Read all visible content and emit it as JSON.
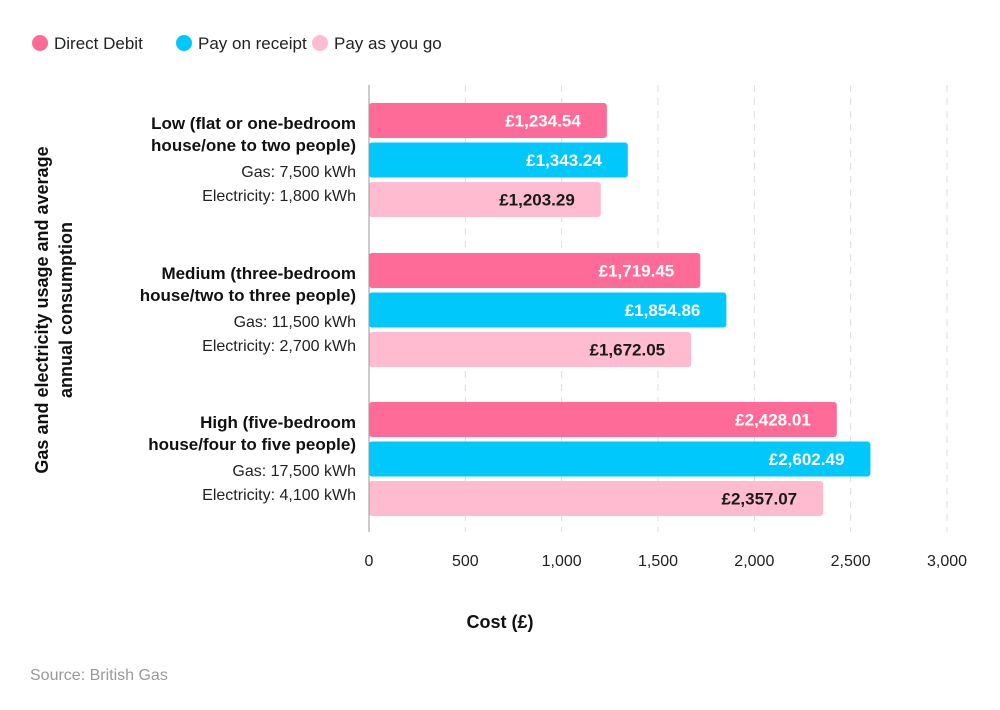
{
  "chart_data": {
    "type": "bar",
    "orientation": "horizontal",
    "xlabel": "Cost (£)",
    "ylabel_lines": [
      "Gas and electricity usage and average",
      "annual consumption"
    ],
    "xlim": [
      0,
      3000
    ],
    "xticks": [
      0,
      500,
      1000,
      1500,
      2000,
      2500,
      3000
    ],
    "xtick_labels": [
      "0",
      "500",
      "1,000",
      "1,500",
      "2,000",
      "2,500",
      "3,000"
    ],
    "grid": "vertical dashed",
    "legend_position": "top-left",
    "categories": [
      {
        "title_lines": [
          "Low (flat or one-bedroom",
          "house/one to two people)"
        ],
        "detail_lines": [
          "Gas: 7,500 kWh",
          "Electricity: 1,800 kWh"
        ]
      },
      {
        "title_lines": [
          "Medium (three-bedroom",
          "house/two to three people)"
        ],
        "detail_lines": [
          "Gas: 11,500 kWh",
          "Electricity: 2,700 kWh"
        ]
      },
      {
        "title_lines": [
          "High (five-bedroom",
          "house/four to five people)"
        ],
        "detail_lines": [
          "Gas: 17,500 kWh",
          "Electricity: 4,100 kWh"
        ]
      }
    ],
    "series": [
      {
        "name": "Direct Debit",
        "color": "#ff6b98",
        "label_color": "#ffffff",
        "values": [
          1234.54,
          1719.45,
          2428.01
        ],
        "labels": [
          "£1,234.54",
          "£1,719.45",
          "£2,428.01"
        ]
      },
      {
        "name": "Pay on receipt",
        "color": "#00c8fa",
        "label_color": "#ffffff",
        "values": [
          1343.24,
          1854.86,
          2602.49
        ],
        "labels": [
          "£1,343.24",
          "£1,854.86",
          "£2,602.49"
        ]
      },
      {
        "name": "Pay as you go",
        "color": "#ffbcd0",
        "label_color": "#1a1a1a",
        "values": [
          1203.29,
          1672.05,
          2357.07
        ],
        "labels": [
          "£1,203.29",
          "£1,672.05",
          "£2,357.07"
        ]
      }
    ]
  },
  "source": "Source: British Gas"
}
